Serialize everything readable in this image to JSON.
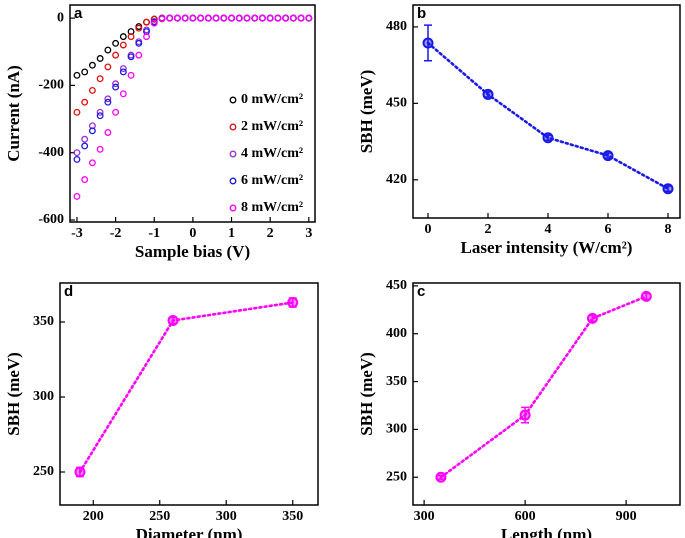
{
  "chart_data": [
    {
      "type": "scatter",
      "panel_label": "a",
      "xlabel": "Sample bias (V)",
      "ylabel": "Current (nA)",
      "x": [
        -3.0,
        -2.8,
        -2.6,
        -2.4,
        -2.2,
        -2.0,
        -1.8,
        -1.6,
        -1.4,
        -1.2,
        -1.0,
        -0.8,
        -0.6,
        -0.4,
        -0.2,
        0,
        0.2,
        0.4,
        0.6,
        0.8,
        1.0,
        1.2,
        1.4,
        1.6,
        1.8,
        2.0,
        2.2,
        2.4,
        2.6,
        2.8,
        3.0
      ],
      "series": [
        {
          "name": "0 mW/cm²",
          "color": "#000000",
          "values": [
            -170,
            -160,
            -140,
            -120,
            -95,
            -75,
            -55,
            -40,
            -25,
            -12,
            -3,
            0,
            0,
            0,
            0,
            0,
            0,
            0,
            0,
            0,
            0,
            0,
            0,
            0,
            0,
            0,
            0,
            0,
            0,
            0,
            0
          ]
        },
        {
          "name": "2 mW/cm²",
          "color": "#e01010",
          "values": [
            -280,
            -250,
            -215,
            -180,
            -145,
            -110,
            -80,
            -55,
            -30,
            -12,
            -3,
            0,
            0,
            0,
            0,
            0,
            0,
            0,
            0,
            0,
            0,
            0,
            0,
            0,
            0,
            0,
            0,
            0,
            0,
            0,
            0
          ]
        },
        {
          "name": "4 mW/cm²",
          "color": "#9932cc",
          "values": [
            -400,
            -360,
            -320,
            -280,
            -240,
            -195,
            -150,
            -110,
            -70,
            -35,
            -10,
            -1,
            0,
            0,
            0,
            0,
            0,
            0,
            0,
            0,
            0,
            0,
            0,
            0,
            0,
            0,
            0,
            0,
            0,
            0,
            0
          ]
        },
        {
          "name": "6 mW/cm²",
          "color": "#1a1ae6",
          "values": [
            -420,
            -380,
            -335,
            -290,
            -250,
            -205,
            -160,
            -115,
            -75,
            -40,
            -12,
            -2,
            0,
            0,
            0,
            0,
            0,
            0,
            0,
            0,
            0,
            0,
            0,
            0,
            0,
            0,
            0,
            0,
            0,
            0,
            0
          ]
        },
        {
          "name": "8 mW/cm²",
          "color": "#ff00ff",
          "values": [
            -530,
            -480,
            -430,
            -390,
            -340,
            -280,
            -225,
            -170,
            -110,
            -55,
            -15,
            -2,
            0,
            0,
            0,
            0,
            0,
            0,
            0,
            0,
            0,
            0,
            0,
            0,
            0,
            0,
            0,
            0,
            0,
            0,
            0
          ]
        }
      ],
      "xlim": [
        -3.18,
        3.16
      ],
      "ylim": [
        -606,
        39
      ],
      "xticks": [
        -3,
        -2,
        -1,
        0,
        1,
        2,
        3
      ],
      "yticks": [
        0,
        -200,
        -400,
        -600
      ]
    },
    {
      "type": "line",
      "panel_label": "b",
      "xlabel": "Laser intensity (W/cm²)",
      "ylabel": "SBH (meV)",
      "x": [
        0,
        2,
        4,
        6,
        8
      ],
      "values": [
        473.7,
        453.5,
        436.5,
        429.5,
        416.5
      ],
      "errors": [
        7,
        1,
        1,
        1,
        1
      ],
      "color": "#1a1ae6",
      "xlim": [
        -0.5,
        8.4
      ],
      "ylim": [
        405,
        488.6
      ],
      "xticks": [
        0,
        2,
        4,
        6,
        8
      ],
      "yticks": [
        420,
        450,
        480
      ]
    },
    {
      "type": "line",
      "panel_label": "d",
      "xlabel": "Diameter (nm)",
      "ylabel": "SBH (meV)",
      "x": [
        190,
        260,
        350
      ],
      "values": [
        250,
        351,
        363
      ],
      "errors": [
        3,
        2,
        3
      ],
      "color": "#ff00ff",
      "xlim": [
        175,
        369
      ],
      "ylim": [
        228,
        376
      ],
      "xticks": [
        200,
        250,
        300,
        350
      ],
      "yticks": [
        250,
        300,
        350
      ]
    },
    {
      "type": "line",
      "panel_label": "c",
      "xlabel": "Length (nm)",
      "ylabel": "SBH (meV)",
      "x": [
        350,
        600,
        800,
        960
      ],
      "values": [
        250,
        315,
        416,
        439
      ],
      "errors": [
        2,
        8,
        3,
        3
      ],
      "color": "#ff00ff",
      "xlim": [
        267,
        1060
      ],
      "ylim": [
        221,
        453
      ],
      "xticks": [
        300,
        600,
        900
      ],
      "yticks": [
        250,
        300,
        350,
        400,
        450
      ]
    }
  ]
}
